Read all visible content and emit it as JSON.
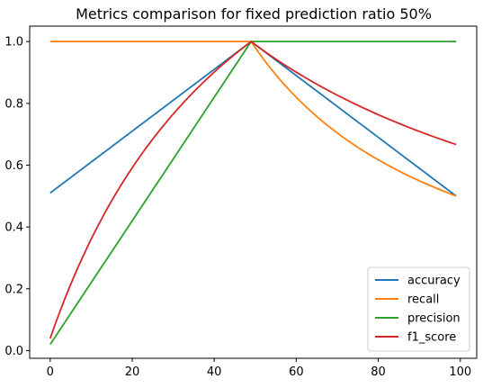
{
  "chart_data": {
    "type": "line",
    "title": "Metrics comparison for fixed prediction ratio 50%",
    "xlabel": "",
    "ylabel": "",
    "xlim": [
      -5,
      104
    ],
    "ylim": [
      -0.025,
      1.05
    ],
    "xticks": [
      "0",
      "20",
      "40",
      "60",
      "80",
      "100"
    ],
    "yticks": [
      "0.0",
      "0.2",
      "0.4",
      "0.6",
      "0.8",
      "1.0"
    ],
    "legend_position": "bottom-right",
    "grid": false,
    "x": {
      "start": 0,
      "end": 99,
      "step": 1
    },
    "series": [
      {
        "name": "accuracy",
        "color": "#1f77b4",
        "formula": "x<=49 ? 0.51 + x/100 : 1.49 - x/100"
      },
      {
        "name": "recall",
        "color": "#ff7f0e",
        "formula": "x<=49 ? 1.0 : 50/(x+1)"
      },
      {
        "name": "precision",
        "color": "#2ca02c",
        "formula": "x<=49 ? (x+1)/50 : 1.0"
      },
      {
        "name": "f1_score",
        "color": "#d62728",
        "formula": "x<=49 ? 2(x+1)/(x+51) : 100/(x+51)"
      }
    ]
  }
}
